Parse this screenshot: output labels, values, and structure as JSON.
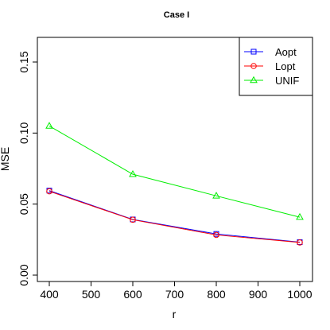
{
  "chart_data": {
    "type": "line",
    "title": "Case I",
    "xlabel": "r",
    "ylabel": "MSE",
    "x": [
      400,
      600,
      800,
      1000
    ],
    "xlim": [
      400,
      1000
    ],
    "ylim": [
      0.0,
      0.16
    ],
    "xticks": [
      "400",
      "500",
      "600",
      "700",
      "800",
      "900",
      "1000"
    ],
    "yticks": [
      "0.00",
      "0.05",
      "0.10",
      "0.15"
    ],
    "grid": false,
    "legend_position": "top-right",
    "series": [
      {
        "name": "Aopt",
        "color": "#0000ff",
        "marker": "square",
        "values": [
          0.0595,
          0.0392,
          0.029,
          0.0232
        ]
      },
      {
        "name": "Lopt",
        "color": "#ff0000",
        "marker": "circle",
        "values": [
          0.059,
          0.039,
          0.0283,
          0.023
        ]
      },
      {
        "name": "UNIF",
        "color": "#00ee00",
        "marker": "triangle",
        "values": [
          0.105,
          0.071,
          0.0558,
          0.0408
        ]
      }
    ]
  }
}
